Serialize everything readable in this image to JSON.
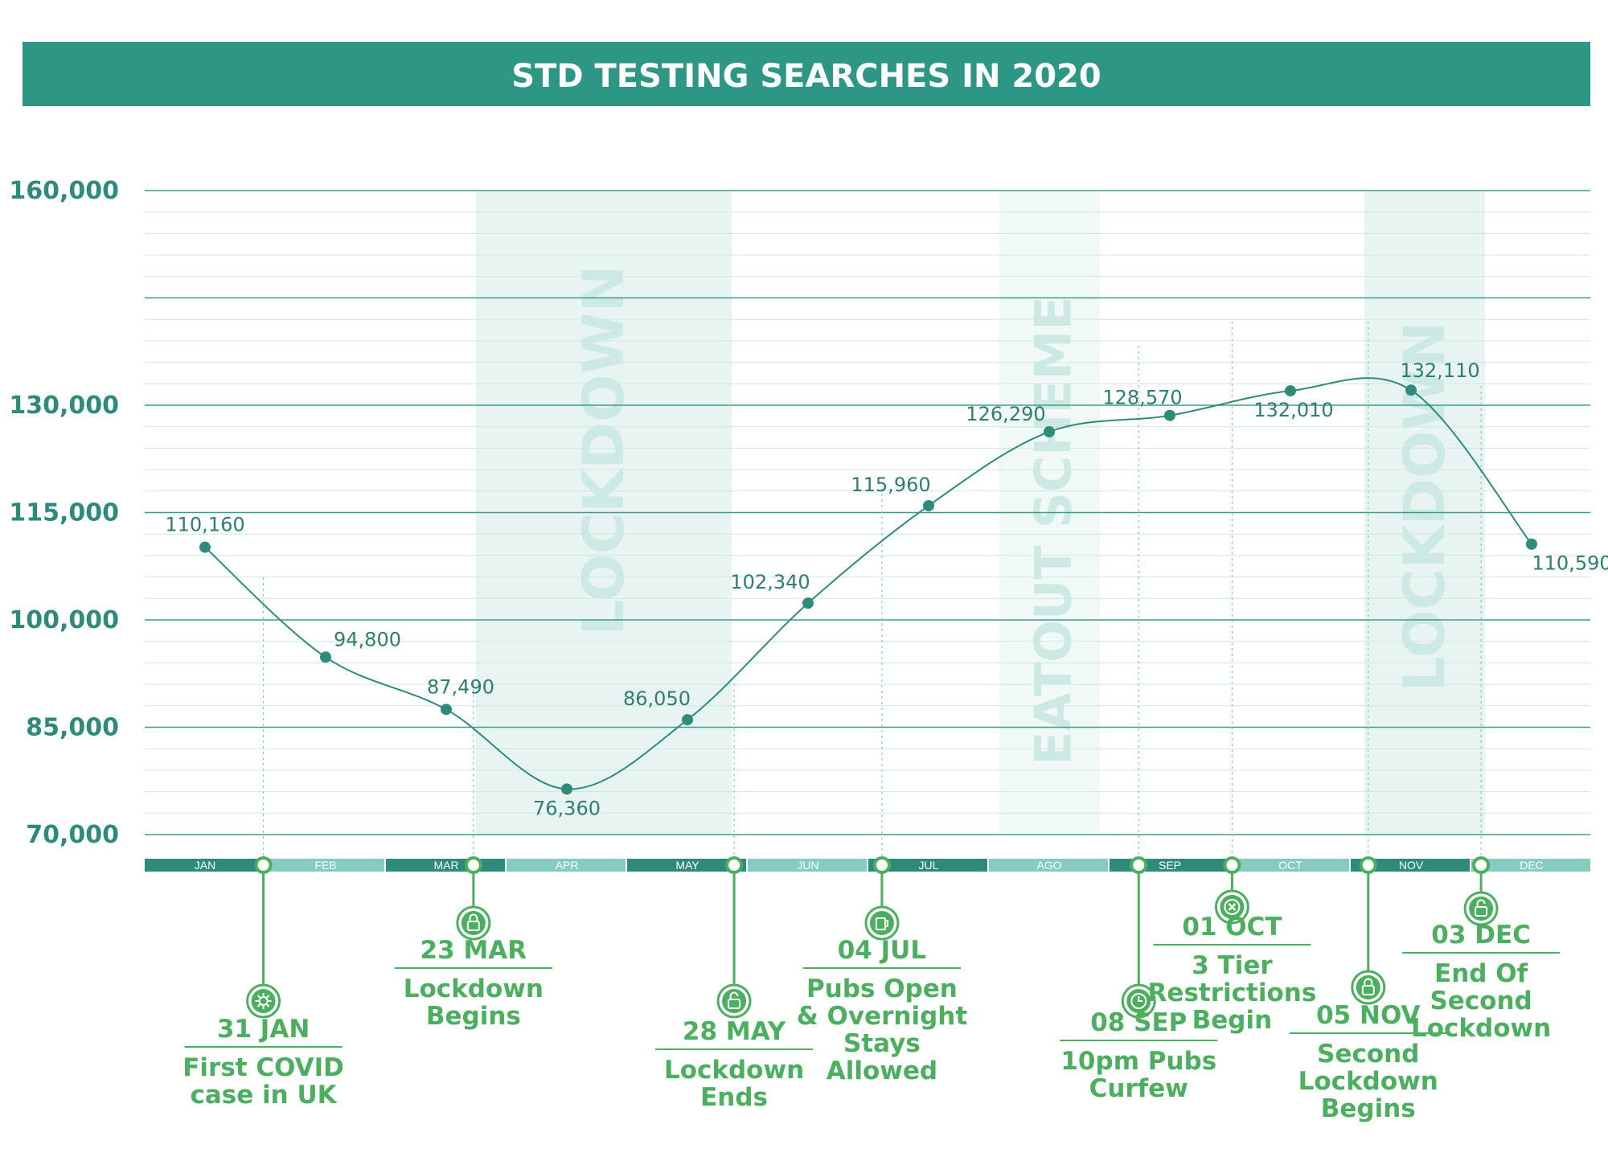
{
  "chart_data": {
    "type": "line",
    "title": "STD TESTING SEARCHES IN 2020",
    "months": [
      "JAN",
      "FEB",
      "MAR",
      "APR",
      "MAY",
      "JUN",
      "JUL",
      "AGO",
      "SEP",
      "OCT",
      "NOV",
      "DEC"
    ],
    "x": [
      "JAN",
      "FEB",
      "MAR",
      "APR",
      "MAY",
      "JUN",
      "JUL",
      "AGO",
      "SEP",
      "OCT",
      "NOV",
      "DEC"
    ],
    "series": [
      {
        "values": [
          110160,
          94800,
          87490,
          76360,
          86050,
          102340,
          115960,
          126290,
          128570,
          132010,
          132110,
          110590
        ]
      }
    ],
    "value_labels": [
      "110,160",
      "94,800",
      "87,490",
      "76,360",
      "86,050",
      "102,340",
      "115,960",
      "126,290",
      "128,570",
      "132,010",
      "132,110",
      "110,590"
    ],
    "ylim": [
      70000,
      160000
    ],
    "y_ticks": [
      70000,
      85000,
      100000,
      115000,
      130000,
      160000
    ],
    "y_tick_labels": [
      "70,000",
      "85,000",
      "100,000",
      "115,000",
      "130,000",
      "160,000"
    ],
    "grid": true,
    "shaded_periods": [
      {
        "label": "LOCKDOWN",
        "start": "23 MAR",
        "end": "28 MAY"
      },
      {
        "label": "EATOUT SCHEME",
        "start": "AGO",
        "end": "08 SEP"
      },
      {
        "label": "LOCKDOWN",
        "start": "05 NOV",
        "end": "03 DEC"
      }
    ],
    "events": [
      {
        "date": "31 JAN",
        "lines": [
          "First COVID",
          "case in UK"
        ],
        "icon": "virus-icon"
      },
      {
        "date": "23 MAR",
        "lines": [
          "Lockdown",
          "Begins"
        ],
        "icon": "lock-closed-icon"
      },
      {
        "date": "28 MAY",
        "lines": [
          "Lockdown",
          "Ends"
        ],
        "icon": "lock-open-icon"
      },
      {
        "date": "04 JUL",
        "lines": [
          "Pubs Open",
          "& Overnight",
          "Stays",
          "Allowed"
        ],
        "icon": "beer-mug-icon"
      },
      {
        "date": "08 SEP",
        "lines": [
          "10pm Pubs",
          "Curfew"
        ],
        "icon": "clock-icon"
      },
      {
        "date": "01 OCT",
        "lines": [
          "3 Tier",
          "Restrictions",
          "Begin"
        ],
        "icon": "x-circle-icon"
      },
      {
        "date": "05 NOV",
        "lines": [
          "Second",
          "Lockdown",
          "Begins"
        ],
        "icon": "lock-closed-icon"
      },
      {
        "date": "03 DEC",
        "lines": [
          "End Of",
          "Second",
          "Lockdown"
        ],
        "icon": "lock-open-icon"
      }
    ]
  },
  "colors": {
    "banner": "#2e9685",
    "line": "#2e8b7a",
    "event_green": "#4cae5f",
    "month_dark": "#2e8b7a",
    "month_light": "#86cbc0",
    "shade": "#e8f4f1",
    "shade_light": "#f1f9f7",
    "shade_text": "#cde9e3"
  }
}
